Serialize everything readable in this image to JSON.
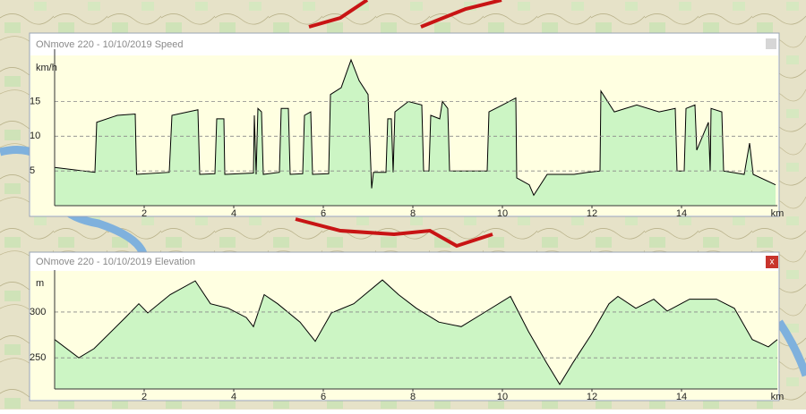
{
  "chart_data": [
    {
      "type": "area",
      "title": "ONmove 220 - 10/10/2019 Speed",
      "y_label": "km/h",
      "x_label": "km",
      "x": [
        0,
        0.9,
        0.94,
        1.4,
        1.8,
        1.83,
        2.56,
        2.62,
        3.2,
        3.24,
        3.58,
        3.62,
        3.78,
        3.8,
        4.44,
        4.46,
        4.5,
        4.54,
        4.62,
        4.66,
        5.02,
        5.06,
        5.22,
        5.26,
        5.54,
        5.58,
        5.72,
        5.76,
        6.12,
        6.16,
        6.4,
        6.62,
        6.8,
        7.0,
        7.08,
        7.12,
        7.4,
        7.44,
        7.52,
        7.56,
        7.6,
        7.9,
        8.2,
        8.24,
        8.36,
        8.4,
        8.6,
        8.66,
        8.78,
        8.82,
        9.66,
        9.7,
        10.0,
        10.3,
        10.32,
        10.6,
        10.7,
        11,
        11.6,
        11.9,
        12.18,
        12.2,
        12.5,
        13.0,
        13.5,
        13.86,
        13.9,
        14.06,
        14.1,
        14.3,
        14.34,
        14.6,
        14.64,
        14.66,
        14.9,
        14.94,
        15.4,
        15.52,
        15.6,
        16.1
      ],
      "series": [
        {
          "color": "#000000",
          "fill": "#ccf5c4",
          "values": [
            5.5,
            4.8,
            12,
            13,
            13.2,
            4.5,
            4.8,
            13,
            13.8,
            4.5,
            4.6,
            12.5,
            12.5,
            4.5,
            4.7,
            13,
            4.5,
            14,
            13.5,
            4.5,
            4.8,
            14,
            14,
            4.5,
            4.6,
            13,
            13.5,
            4.5,
            4.6,
            16,
            17,
            21,
            18,
            16,
            2.5,
            4.8,
            4.8,
            12.5,
            12.5,
            4.8,
            13.5,
            15,
            14.5,
            5,
            5,
            13,
            12.5,
            15,
            14,
            5,
            5,
            13.5,
            14.5,
            15.5,
            4,
            3,
            1.5,
            4.5,
            4.5,
            4.8,
            5,
            16.5,
            13.5,
            14.5,
            13.5,
            14,
            5,
            5,
            14,
            14.5,
            8,
            12,
            5,
            14,
            13.5,
            5,
            4.5,
            9,
            4.5,
            3
          ]
        }
      ],
      "xlim": [
        0,
        16.14
      ],
      "xticks": [
        2,
        4,
        6,
        8,
        10,
        12,
        14
      ],
      "ylim": [
        0,
        21.5
      ],
      "yticks": [
        5,
        10,
        15
      ],
      "grid": true
    },
    {
      "type": "area",
      "title": "ONmove 220 - 10/10/2019 Elevation",
      "close_button": "x",
      "y_label": "m",
      "x_label": "km",
      "x": [
        0,
        0.54,
        0.88,
        1.58,
        1.88,
        2.08,
        2.58,
        3.14,
        3.48,
        3.88,
        4.28,
        4.44,
        4.68,
        4.98,
        5.48,
        5.82,
        6.18,
        6.68,
        7.32,
        7.68,
        8.08,
        8.58,
        9.08,
        9.58,
        10.18,
        10.58,
        10.98,
        11.28,
        11.58,
        11.98,
        12.38,
        12.58,
        12.98,
        13.38,
        13.68,
        14.18,
        14.78,
        15.18,
        15.58,
        15.94,
        16.14
      ],
      "series": [
        {
          "color": "#000000",
          "fill": "#ccf5c4",
          "values": [
            270,
            250,
            260,
            294,
            309,
            299,
            319,
            334,
            309,
            304,
            294,
            284,
            319,
            309,
            289,
            268,
            299,
            309,
            335,
            319,
            304,
            289,
            284,
            299,
            317,
            279,
            245,
            221,
            245,
            275,
            309,
            317,
            304,
            314,
            301,
            314,
            314,
            304,
            270,
            262,
            270
          ]
        }
      ],
      "xlim": [
        0,
        16.14
      ],
      "xticks": [
        2,
        4,
        6,
        8,
        10,
        12,
        14
      ],
      "ylim": [
        216,
        338
      ],
      "yticks": [
        250,
        300
      ],
      "grid": true
    }
  ]
}
